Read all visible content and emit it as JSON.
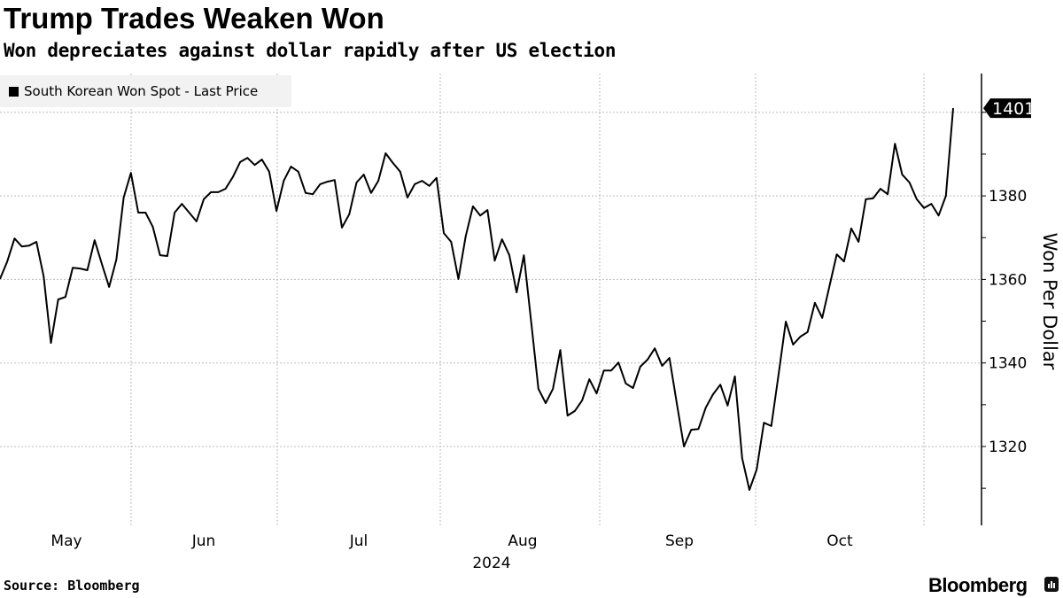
{
  "header": {
    "title": "Trump Trades Weaken Won",
    "subtitle": "Won depreciates against dollar rapidly after US election"
  },
  "footer": {
    "source": "Source: Bloomberg",
    "brand": "Bloomberg"
  },
  "chart_data": {
    "type": "line",
    "title": "Trump Trades Weaken Won",
    "subtitle": "Won depreciates against dollar rapidly after US election",
    "xlabel": "2024",
    "ylabel": "Won Per Dollar",
    "ylim": [
      1300,
      1410
    ],
    "yticks": [
      1320,
      1340,
      1360,
      1380
    ],
    "grid": true,
    "legend_position": "top-left",
    "x_tick_labels": [
      "May",
      "Jun",
      "Jul",
      "Aug",
      "Sep",
      "Oct"
    ],
    "last_value_label": "1401",
    "line_color": "#000000",
    "series": [
      {
        "name": "South Korean Won Spot - Last Price",
        "values": [
          1360.1,
          1364.3,
          1369.8,
          1367.9,
          1368.1,
          1369.0,
          1360.7,
          1344.8,
          1355.2,
          1355.8,
          1362.8,
          1362.6,
          1362.2,
          1369.4,
          1363.7,
          1358.2,
          1364.8,
          1379.6,
          1385.5,
          1376.0,
          1376.0,
          1372.6,
          1365.8,
          1365.6,
          1376.0,
          1378.1,
          1376.0,
          1373.9,
          1379.2,
          1380.9,
          1380.9,
          1381.7,
          1384.5,
          1388.1,
          1389.1,
          1387.4,
          1388.7,
          1385.8,
          1376.4,
          1383.6,
          1387.0,
          1385.8,
          1380.7,
          1380.4,
          1382.8,
          1383.4,
          1383.8,
          1372.4,
          1375.6,
          1383.2,
          1385.1,
          1380.7,
          1383.6,
          1390.2,
          1387.9,
          1385.8,
          1379.6,
          1382.8,
          1383.6,
          1382.4,
          1384.3,
          1371.1,
          1369.0,
          1360.1,
          1370.3,
          1377.5,
          1375.3,
          1376.6,
          1364.5,
          1369.6,
          1365.8,
          1356.9,
          1365.8,
          1349.9,
          1333.8,
          1330.4,
          1333.8,
          1343.1,
          1327.4,
          1328.5,
          1331.0,
          1336.1,
          1332.7,
          1338.2,
          1338.2,
          1340.1,
          1335.1,
          1334.0,
          1339.1,
          1340.8,
          1343.5,
          1339.3,
          1341.2,
          1330.5,
          1320.0,
          1324.0,
          1324.2,
          1329.3,
          1332.5,
          1334.8,
          1329.8,
          1336.8,
          1317.2,
          1309.6,
          1314.5,
          1325.7,
          1324.9,
          1337.2,
          1349.9,
          1344.4,
          1346.3,
          1347.4,
          1354.4,
          1350.8,
          1358.4,
          1366.0,
          1364.3,
          1372.2,
          1369.0,
          1379.2,
          1379.4,
          1381.7,
          1380.4,
          1392.5,
          1385.1,
          1383.2,
          1379.2,
          1377.1,
          1378.1,
          1375.3,
          1380.0,
          1401.0
        ]
      }
    ]
  }
}
